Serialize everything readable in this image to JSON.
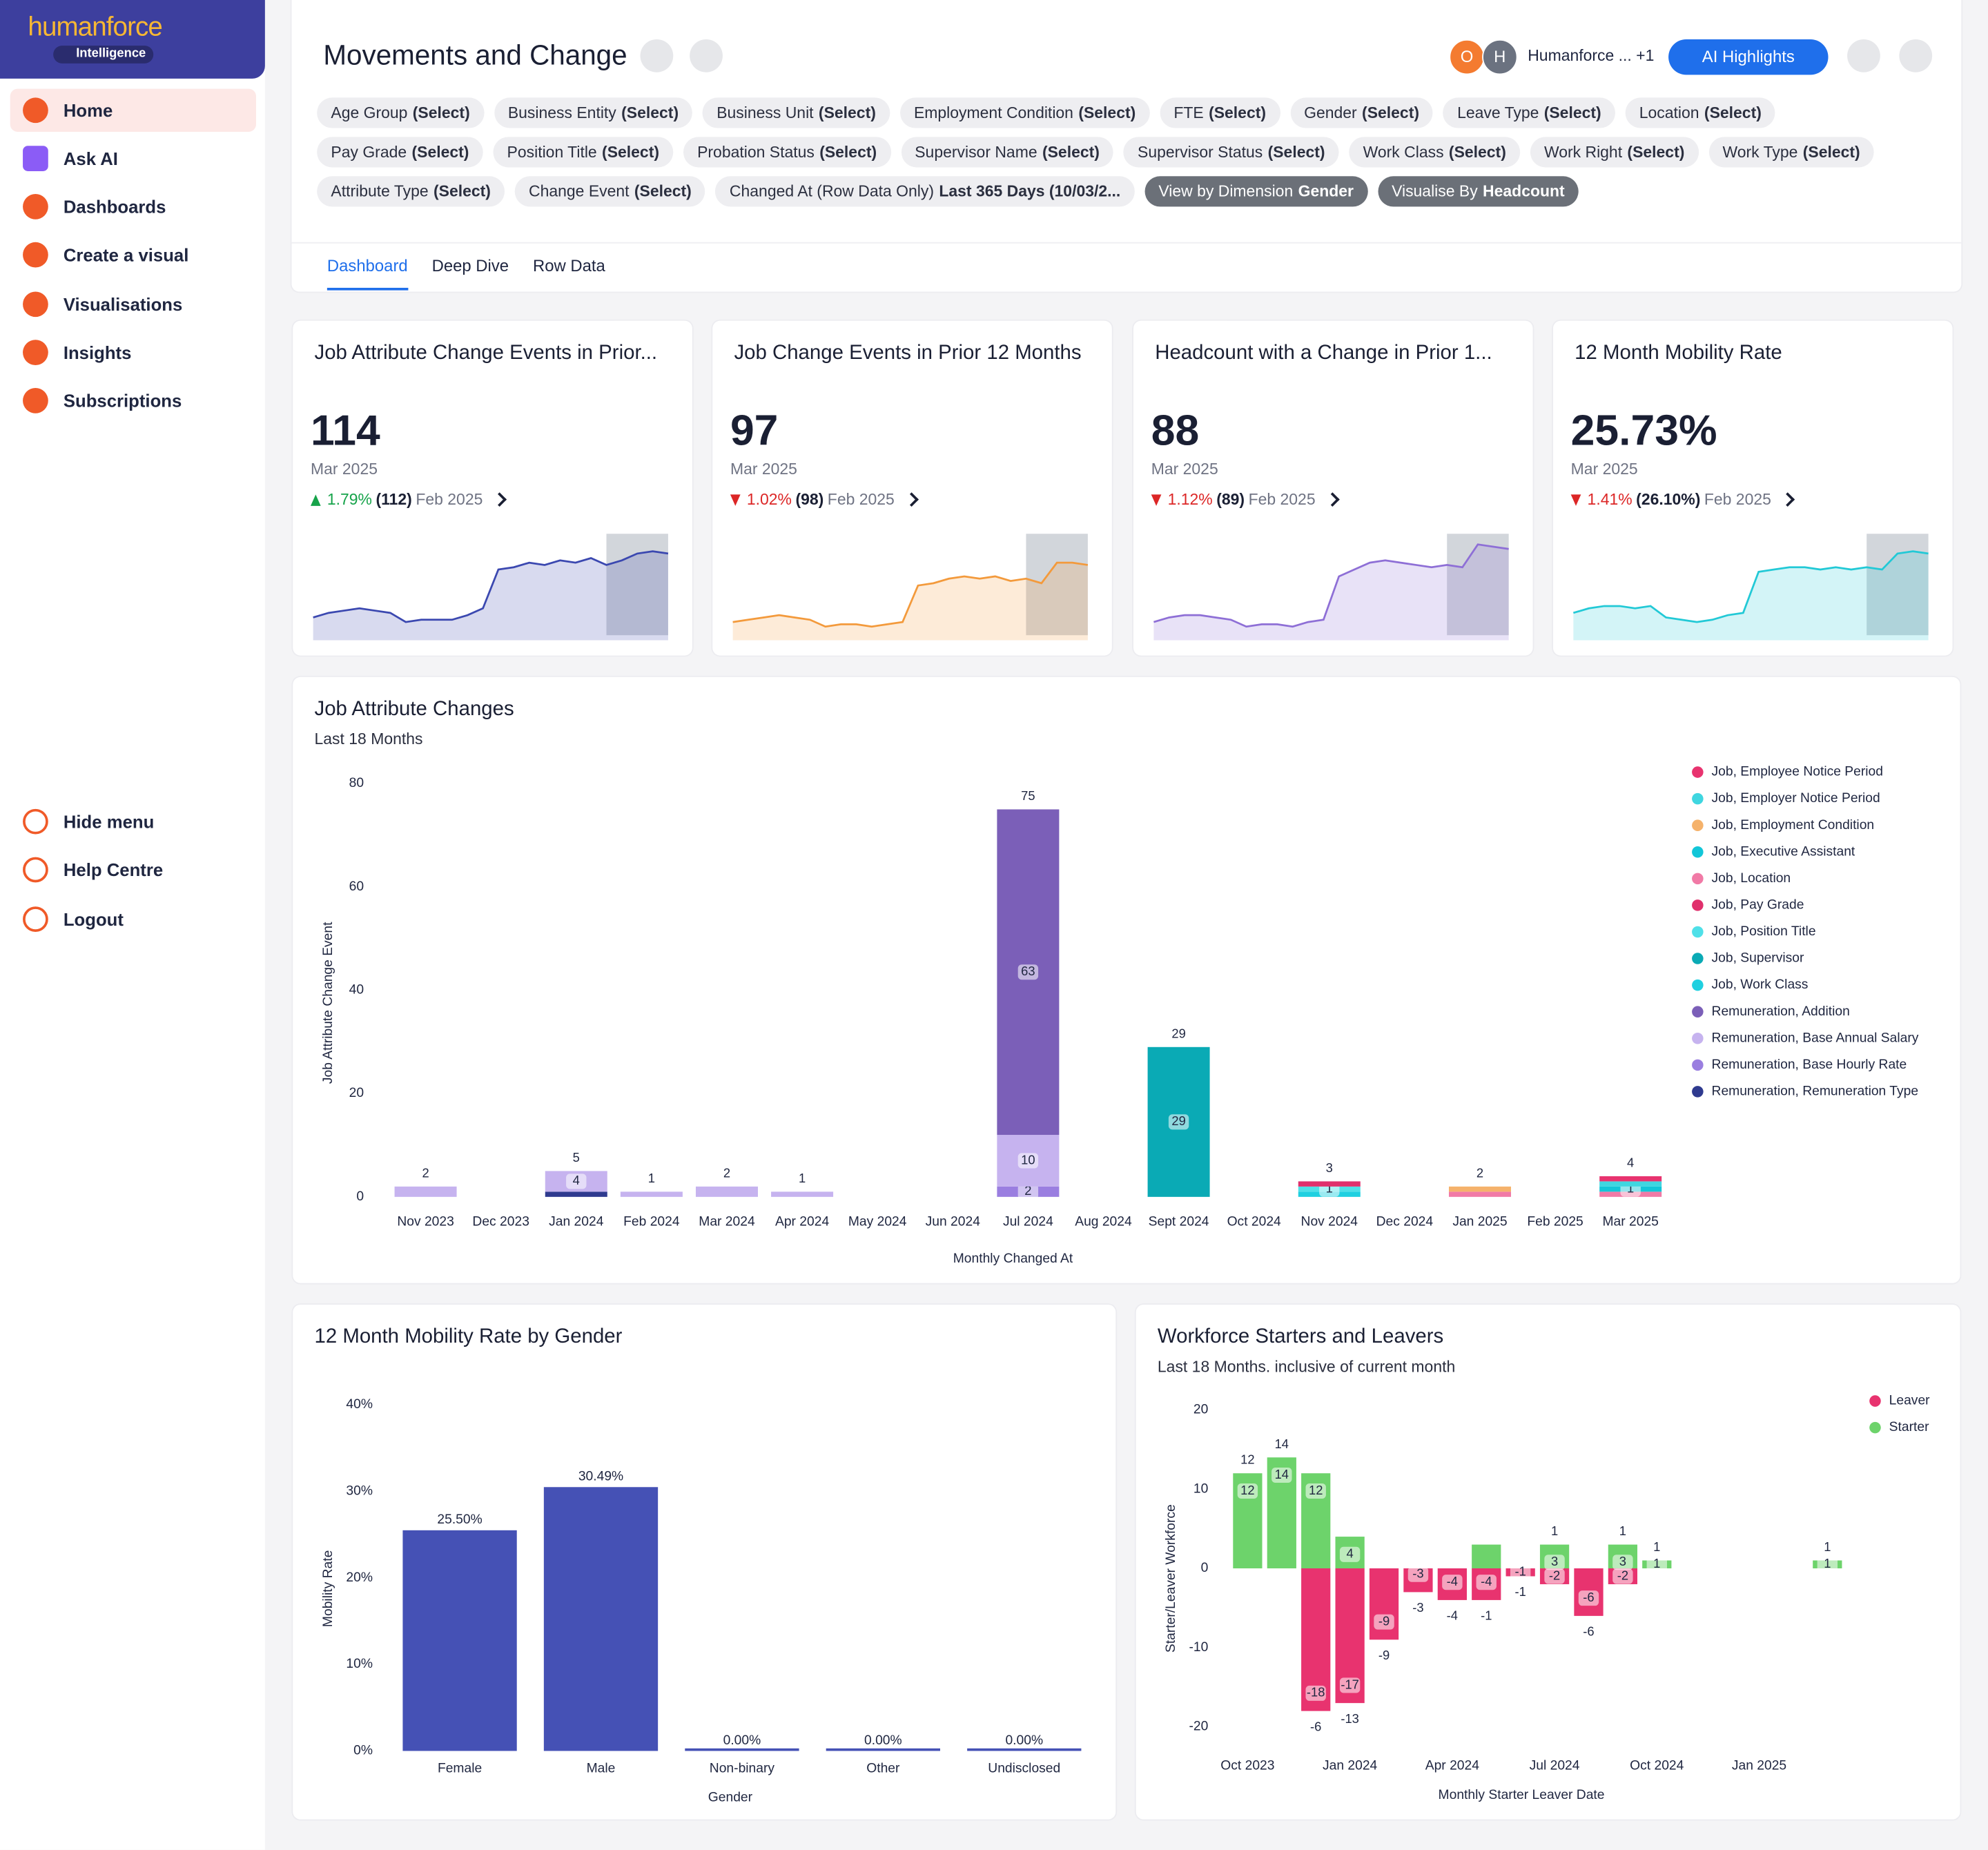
{
  "sidebar": {
    "brand": "humanforce",
    "brand_badge": "Intelligence",
    "nav": [
      "Home",
      "Ask AI",
      "Dashboards",
      "Create a visual",
      "Visualisations",
      "Insights",
      "Subscriptions"
    ],
    "active": "Home",
    "bottom_nav": [
      "Hide menu",
      "Help Centre",
      "Logout"
    ]
  },
  "header": {
    "title": "Movements and Change",
    "avatars": [
      "O",
      "H"
    ],
    "owner": "Humanforce ... +1",
    "ai_button": "AI Highlights",
    "filters": [
      {
        "label": "Age Group",
        "value": "(Select)"
      },
      {
        "label": "Business Entity",
        "value": "(Select)"
      },
      {
        "label": "Business Unit",
        "value": "(Select)"
      },
      {
        "label": "Employment Condition",
        "value": "(Select)"
      },
      {
        "label": "FTE",
        "value": "(Select)"
      },
      {
        "label": "Gender",
        "value": "(Select)"
      },
      {
        "label": "Leave Type",
        "value": "(Select)"
      },
      {
        "label": "Location",
        "value": "(Select)"
      },
      {
        "label": "Pay Grade",
        "value": "(Select)"
      },
      {
        "label": "Position Title",
        "value": "(Select)"
      },
      {
        "label": "Probation Status",
        "value": "(Select)"
      },
      {
        "label": "Supervisor Name",
        "value": "(Select)"
      },
      {
        "label": "Supervisor Status",
        "value": "(Select)"
      },
      {
        "label": "Work Class",
        "value": "(Select)"
      },
      {
        "label": "Work Right",
        "value": "(Select)"
      },
      {
        "label": "Work Type",
        "value": "(Select)"
      },
      {
        "label": "Attribute Type",
        "value": "(Select)"
      },
      {
        "label": "Change Event",
        "value": "(Select)"
      },
      {
        "label": "Changed At (Row Data Only)",
        "value": "Last 365 Days (10/03/2..."
      }
    ],
    "view_options": [
      {
        "label": "View by Dimension",
        "value": "Gender"
      },
      {
        "label": "Visualise By",
        "value": "Headcount"
      }
    ],
    "tabs": [
      "Dashboard",
      "Deep Dive",
      "Row Data"
    ],
    "active_tab": "Dashboard"
  },
  "kpis": [
    {
      "title": "Job Attribute Change Events in Prior...",
      "value": "114",
      "period": "Mar 2025",
      "direction": "up",
      "change": "1.79%",
      "prior": "(112)",
      "prior_period": "Feb 2025",
      "color": "#3b48b0",
      "trend": [
        10,
        12,
        13,
        14,
        13,
        12,
        8,
        9,
        9,
        9,
        11,
        14,
        31,
        32,
        34,
        33,
        35,
        34,
        36,
        33,
        35,
        38,
        39,
        38
      ]
    },
    {
      "title": "Job Change Events in Prior 12 Months",
      "value": "97",
      "period": "Mar 2025",
      "direction": "down",
      "change": "1.02%",
      "prior": "(98)",
      "prior_period": "Feb 2025",
      "color": "#f39a3c",
      "trend": [
        8,
        9,
        10,
        11,
        10,
        9,
        6,
        7,
        7,
        6,
        7,
        8,
        24,
        25,
        27,
        28,
        27,
        28,
        26,
        27,
        25,
        34,
        34,
        33
      ]
    },
    {
      "title": "Headcount with a Change in Prior 1...",
      "value": "88",
      "period": "Mar 2025",
      "direction": "down",
      "change": "1.12%",
      "prior": "(89)",
      "prior_period": "Feb 2025",
      "color": "#8e6fd6",
      "trend": [
        8,
        10,
        11,
        11,
        10,
        9,
        6,
        7,
        7,
        6,
        8,
        9,
        28,
        31,
        34,
        35,
        34,
        33,
        32,
        33,
        32,
        42,
        41,
        40
      ]
    },
    {
      "title": "12 Month Mobility Rate",
      "value": "25.73%",
      "period": "Mar 2025",
      "direction": "down",
      "change": "1.41%",
      "prior": "(26.10%)",
      "prior_period": "Feb 2025",
      "color": "#22c9d6",
      "trend": [
        12,
        14,
        15,
        15,
        14,
        15,
        10,
        9,
        8,
        9,
        11,
        12,
        30,
        31,
        32,
        32,
        31,
        32,
        31,
        32,
        31,
        38,
        39,
        38
      ]
    }
  ],
  "chart_data": [
    {
      "type": "stacked_bar",
      "title": "Job Attribute Changes",
      "subtitle": "Last 18 Months",
      "y_label": "Job Attribute Change Event",
      "x_label": "Monthly Changed At",
      "ylim": [
        0,
        80
      ],
      "yticks": [
        0,
        20,
        40,
        60,
        80
      ],
      "legend": "top-right",
      "categories": [
        "Nov 2023",
        "Dec 2023",
        "Jan 2024",
        "Feb 2024",
        "Mar 2024",
        "Apr 2024",
        "May 2024",
        "Jun 2024",
        "Jul 2024",
        "Aug 2024",
        "Sept 2024",
        "Oct 2024",
        "Nov 2024",
        "Dec 2024",
        "Jan 2025",
        "Feb 2025",
        "Mar 2025"
      ],
      "totals": [
        2,
        null,
        5,
        1,
        2,
        1,
        null,
        null,
        75,
        null,
        29,
        null,
        3,
        null,
        2,
        null,
        4
      ],
      "series": [
        {
          "name": "Job, Employee Notice Period",
          "color": "#e8336f",
          "values": [
            null,
            null,
            null,
            null,
            null,
            null,
            null,
            null,
            null,
            null,
            null,
            null,
            null,
            null,
            null,
            null,
            1
          ]
        },
        {
          "name": "Job, Employer Notice Period",
          "color": "#3fd6e0",
          "values": [
            null,
            null,
            null,
            null,
            null,
            null,
            null,
            null,
            null,
            null,
            null,
            null,
            null,
            null,
            null,
            null,
            1
          ]
        },
        {
          "name": "Job, Employment Condition",
          "color": "#f5b26b",
          "values": [
            null,
            null,
            null,
            null,
            null,
            null,
            null,
            null,
            null,
            null,
            null,
            null,
            null,
            null,
            1,
            null,
            null
          ]
        },
        {
          "name": "Job, Executive Assistant",
          "color": "#12c6d8",
          "values": [
            null,
            null,
            null,
            null,
            null,
            null,
            null,
            null,
            null,
            null,
            null,
            null,
            null,
            null,
            null,
            null,
            1
          ],
          "value_labels": [
            null,
            null,
            null,
            null,
            null,
            null,
            null,
            null,
            null,
            null,
            null,
            null,
            null,
            null,
            null,
            null,
            "1"
          ]
        },
        {
          "name": "Job, Location",
          "color": "#f17aa6",
          "values": [
            null,
            null,
            null,
            null,
            null,
            null,
            null,
            null,
            null,
            null,
            null,
            null,
            null,
            null,
            1,
            null,
            1
          ]
        },
        {
          "name": "Job, Pay Grade",
          "color": "#e0306c",
          "values": [
            null,
            null,
            null,
            null,
            null,
            null,
            null,
            null,
            null,
            null,
            null,
            null,
            1,
            null,
            null,
            null,
            null
          ]
        },
        {
          "name": "Job, Position Title",
          "color": "#4fe0e8",
          "values": [
            null,
            null,
            null,
            null,
            null,
            null,
            null,
            null,
            null,
            null,
            null,
            null,
            1,
            null,
            null,
            null,
            null
          ],
          "value_labels": [
            null,
            null,
            null,
            null,
            null,
            null,
            null,
            null,
            null,
            null,
            null,
            null,
            "1",
            null,
            null,
            null,
            null
          ]
        },
        {
          "name": "Job, Supervisor",
          "color": "#0aaab5",
          "values": [
            null,
            null,
            null,
            null,
            null,
            null,
            null,
            null,
            null,
            null,
            29,
            null,
            null,
            null,
            null,
            null,
            null
          ],
          "value_labels": [
            null,
            null,
            null,
            null,
            null,
            null,
            null,
            null,
            null,
            null,
            "29",
            null,
            null,
            null,
            null,
            null,
            null
          ]
        },
        {
          "name": "Job, Work Class",
          "color": "#1fd0e0",
          "values": [
            null,
            null,
            null,
            null,
            null,
            null,
            null,
            null,
            null,
            null,
            null,
            null,
            1,
            null,
            null,
            null,
            null
          ]
        },
        {
          "name": "Remuneration, Addition",
          "color": "#7b5fb8",
          "values": [
            null,
            null,
            null,
            null,
            null,
            null,
            null,
            null,
            63,
            null,
            null,
            null,
            null,
            null,
            null,
            null,
            null
          ],
          "value_labels": [
            null,
            null,
            null,
            null,
            null,
            null,
            null,
            null,
            "63",
            null,
            null,
            null,
            null,
            null,
            null,
            null,
            null
          ]
        },
        {
          "name": "Remuneration, Base Annual Salary",
          "color": "#c6b3ef",
          "values": [
            2,
            null,
            4,
            1,
            2,
            1,
            null,
            null,
            10,
            null,
            null,
            null,
            null,
            null,
            null,
            null,
            null
          ],
          "value_labels": [
            null,
            null,
            "4",
            null,
            null,
            null,
            null,
            null,
            "10",
            null,
            null,
            null,
            null,
            null,
            null,
            null,
            null
          ]
        },
        {
          "name": "Remuneration, Base Hourly Rate",
          "color": "#9a7ee0",
          "values": [
            null,
            null,
            null,
            null,
            null,
            null,
            null,
            null,
            2,
            null,
            null,
            null,
            null,
            null,
            null,
            null,
            null
          ],
          "value_labels": [
            null,
            null,
            null,
            null,
            null,
            null,
            null,
            null,
            "2",
            null,
            null,
            null,
            null,
            null,
            null,
            null,
            null
          ]
        },
        {
          "name": "Remuneration, Remuneration Type",
          "color": "#2f3a8f",
          "values": [
            null,
            null,
            1,
            null,
            null,
            null,
            null,
            null,
            null,
            null,
            null,
            null,
            null,
            null,
            null,
            null,
            null
          ]
        }
      ],
      "stack_order": [
        12,
        11,
        10,
        9,
        8,
        7,
        6,
        5,
        4,
        3,
        2,
        1,
        0
      ]
    },
    {
      "type": "bar",
      "title": "12 Month Mobility Rate by Gender",
      "y_label": "Mobility Rate",
      "x_label": "Gender",
      "ylim": [
        0,
        40
      ],
      "yticks": [
        {
          "value": 0,
          "label": "0%"
        },
        {
          "value": 10,
          "label": "10%"
        },
        {
          "value": 20,
          "label": "20%"
        },
        {
          "value": 30,
          "label": "30%"
        },
        {
          "value": 40,
          "label": "40%"
        }
      ],
      "categories": [
        "Female",
        "Male",
        "Non-binary",
        "Other",
        "Undisclosed"
      ],
      "values": [
        25.5,
        30.49,
        0,
        0,
        0
      ],
      "value_labels": [
        "25.50%",
        "30.49%",
        "0.00%",
        "0.00%",
        "0.00%"
      ],
      "color": "#4551b5"
    },
    {
      "type": "diverging_bar",
      "title": "Workforce Starters and Leavers",
      "subtitle": "Last 18 Months. inclusive of current month",
      "y_label": "Starter/Leaver Workforce",
      "x_label": "Monthly Starter Leaver Date",
      "ylim": [
        -20,
        20
      ],
      "yticks": [
        -20,
        -10,
        0,
        10,
        20
      ],
      "legend": "top-right",
      "categories": [
        "Oct 2023",
        null,
        null,
        "Jan 2024",
        null,
        null,
        "Apr 2024",
        null,
        null,
        "Jul 2024",
        null,
        null,
        "Oct 2024",
        null,
        null,
        "Jan 2025",
        null,
        null
      ],
      "totals": [
        12,
        14,
        -6,
        -13,
        -9,
        -3,
        -4,
        -1,
        -1,
        1,
        -6,
        1,
        1,
        null,
        null,
        null,
        null,
        1
      ],
      "series": [
        {
          "name": "Leaver",
          "color": "#e8336f",
          "values": [
            null,
            null,
            -18,
            -17,
            -9,
            -3,
            -4,
            -4,
            -1,
            -2,
            -6,
            -2,
            null,
            null,
            null,
            null,
            null,
            null
          ],
          "value_labels": [
            null,
            null,
            "-18",
            "-17",
            "-9",
            "-3",
            "-4",
            "-4",
            "-1",
            "-2",
            "-6",
            "-2",
            null,
            null,
            null,
            null,
            null,
            null
          ]
        },
        {
          "name": "Starter",
          "color": "#6dd36b",
          "values": [
            12,
            14,
            12,
            4,
            null,
            null,
            null,
            3,
            null,
            3,
            null,
            3,
            1,
            null,
            null,
            null,
            null,
            1
          ],
          "value_labels": [
            "12",
            "14",
            "12",
            "4",
            null,
            null,
            null,
            null,
            null,
            "3",
            null,
            "3",
            "1",
            null,
            null,
            null,
            null,
            "1"
          ]
        }
      ]
    }
  ]
}
